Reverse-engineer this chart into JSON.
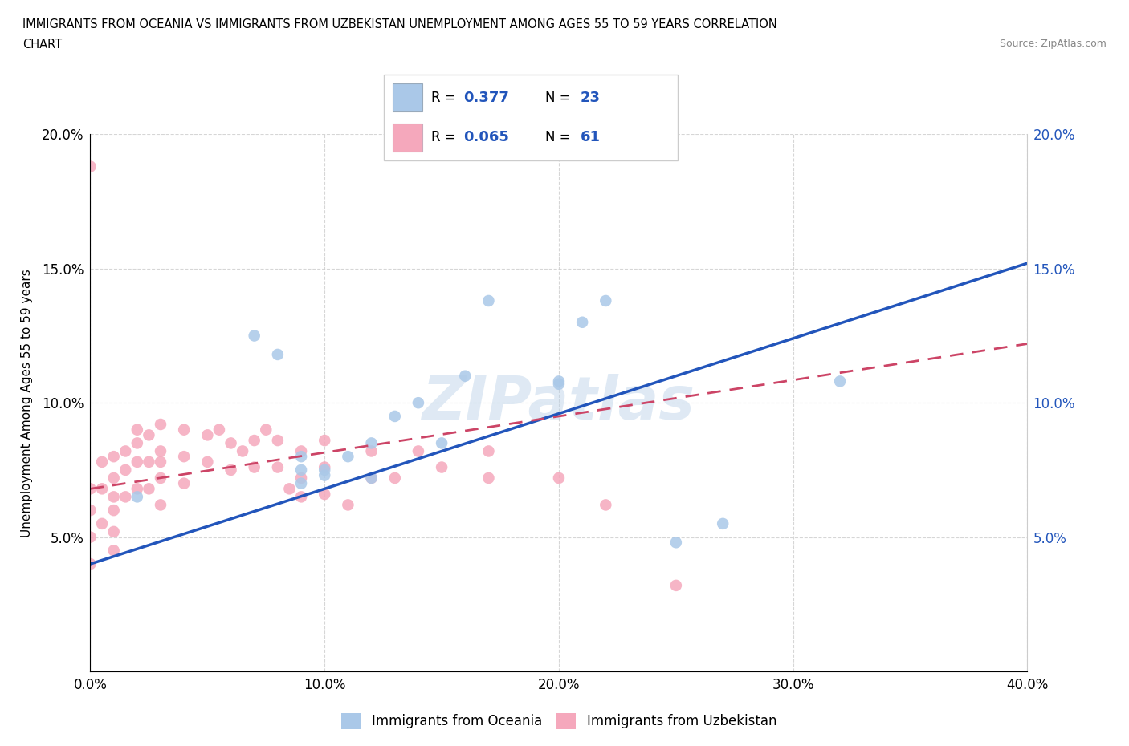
{
  "title_line1": "IMMIGRANTS FROM OCEANIA VS IMMIGRANTS FROM UZBEKISTAN UNEMPLOYMENT AMONG AGES 55 TO 59 YEARS CORRELATION",
  "title_line2": "CHART",
  "source_text": "Source: ZipAtlas.com",
  "ylabel": "Unemployment Among Ages 55 to 59 years",
  "xlim": [
    0.0,
    0.4
  ],
  "ylim": [
    0.0,
    0.2
  ],
  "xticks": [
    0.0,
    0.1,
    0.2,
    0.3,
    0.4
  ],
  "yticks": [
    0.0,
    0.05,
    0.1,
    0.15,
    0.2
  ],
  "xticklabels": [
    "0.0%",
    "10.0%",
    "20.0%",
    "30.0%",
    "40.0%"
  ],
  "yticklabels_left": [
    "",
    "5.0%",
    "10.0%",
    "15.0%",
    "20.0%"
  ],
  "yticklabels_right": [
    "",
    "5.0%",
    "10.0%",
    "15.0%",
    "20.0%"
  ],
  "oceania_color": "#aac8e8",
  "uzbekistan_color": "#f5a8bc",
  "trend_oceania_color": "#2255bb",
  "trend_uzbekistan_color": "#cc4466",
  "watermark": "ZIPatlas",
  "legend_label_oceania": "Immigrants from Oceania",
  "legend_label_uzbekistan": "Immigrants from Uzbekistan",
  "trend_oceania_x0": 0.0,
  "trend_oceania_y0": 0.04,
  "trend_oceania_x1": 0.4,
  "trend_oceania_y1": 0.152,
  "trend_uzbek_x0": 0.0,
  "trend_uzbek_y0": 0.068,
  "trend_uzbek_x1": 0.4,
  "trend_uzbek_y1": 0.122,
  "oceania_x": [
    0.02,
    0.07,
    0.08,
    0.09,
    0.09,
    0.1,
    0.11,
    0.12,
    0.13,
    0.14,
    0.15,
    0.16,
    0.17,
    0.2,
    0.21,
    0.22,
    0.25,
    0.27,
    0.32,
    0.2,
    0.09,
    0.1,
    0.12
  ],
  "oceania_y": [
    0.065,
    0.125,
    0.118,
    0.07,
    0.075,
    0.073,
    0.08,
    0.085,
    0.095,
    0.1,
    0.085,
    0.11,
    0.138,
    0.108,
    0.13,
    0.138,
    0.048,
    0.055,
    0.108,
    0.107,
    0.08,
    0.075,
    0.072
  ],
  "uzbekistan_x": [
    0.0,
    0.0,
    0.0,
    0.0,
    0.0,
    0.005,
    0.005,
    0.005,
    0.01,
    0.01,
    0.01,
    0.01,
    0.01,
    0.015,
    0.015,
    0.015,
    0.02,
    0.02,
    0.02,
    0.025,
    0.025,
    0.03,
    0.03,
    0.03,
    0.03,
    0.04,
    0.04,
    0.04,
    0.05,
    0.05,
    0.055,
    0.06,
    0.06,
    0.065,
    0.07,
    0.07,
    0.075,
    0.08,
    0.08,
    0.085,
    0.09,
    0.09,
    0.09,
    0.1,
    0.1,
    0.1,
    0.11,
    0.12,
    0.12,
    0.13,
    0.14,
    0.15,
    0.17,
    0.17,
    0.2,
    0.22,
    0.25,
    0.03,
    0.01,
    0.02,
    0.025
  ],
  "uzbekistan_y": [
    0.188,
    0.068,
    0.06,
    0.05,
    0.04,
    0.078,
    0.068,
    0.055,
    0.08,
    0.072,
    0.065,
    0.06,
    0.052,
    0.082,
    0.075,
    0.065,
    0.09,
    0.078,
    0.068,
    0.088,
    0.078,
    0.092,
    0.082,
    0.072,
    0.062,
    0.09,
    0.08,
    0.07,
    0.088,
    0.078,
    0.09,
    0.085,
    0.075,
    0.082,
    0.086,
    0.076,
    0.09,
    0.086,
    0.076,
    0.068,
    0.082,
    0.072,
    0.065,
    0.086,
    0.076,
    0.066,
    0.062,
    0.082,
    0.072,
    0.072,
    0.082,
    0.076,
    0.082,
    0.072,
    0.072,
    0.062,
    0.032,
    0.078,
    0.045,
    0.085,
    0.068
  ]
}
